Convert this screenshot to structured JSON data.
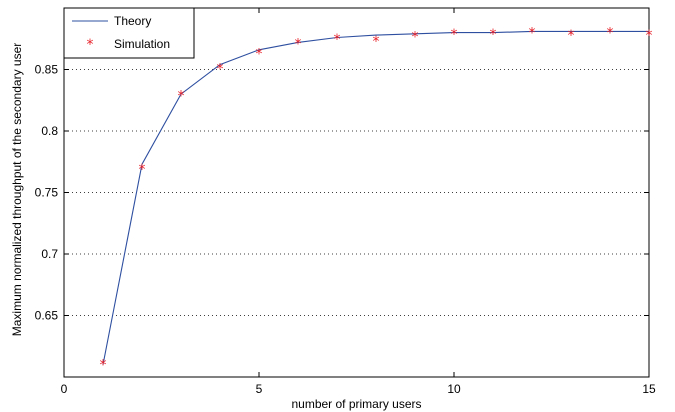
{
  "chart_data": {
    "type": "line",
    "xlabel": "number of primary users",
    "ylabel": "Maximum normalized throughput of the secondary user",
    "xlim": [
      0,
      15
    ],
    "ylim": [
      0.6,
      0.9
    ],
    "xticks": [
      "0",
      "5",
      "10",
      "15"
    ],
    "yticks": [
      "0.65",
      "0.7",
      "0.75",
      "0.8",
      "0.85"
    ],
    "grid": "dotted horizontal",
    "legend_position": "top-left",
    "x": [
      1,
      2,
      3,
      4,
      5,
      6,
      7,
      8,
      9,
      10,
      11,
      12,
      13,
      14,
      15
    ],
    "series": [
      {
        "name": "Theory",
        "style": "line",
        "color": "#2e4fa0",
        "values": [
          0.61,
          0.773,
          0.83,
          0.854,
          0.866,
          0.872,
          0.876,
          0.878,
          0.879,
          0.88,
          0.88,
          0.881,
          0.881,
          0.881,
          0.881
        ]
      },
      {
        "name": "Simulation",
        "style": "marker",
        "marker": "*",
        "color": "#e8212a",
        "values": [
          0.61,
          0.769,
          0.829,
          0.851,
          0.863,
          0.871,
          0.875,
          0.873,
          0.877,
          0.879,
          0.879,
          0.88,
          0.878,
          0.88,
          0.878
        ]
      }
    ]
  }
}
